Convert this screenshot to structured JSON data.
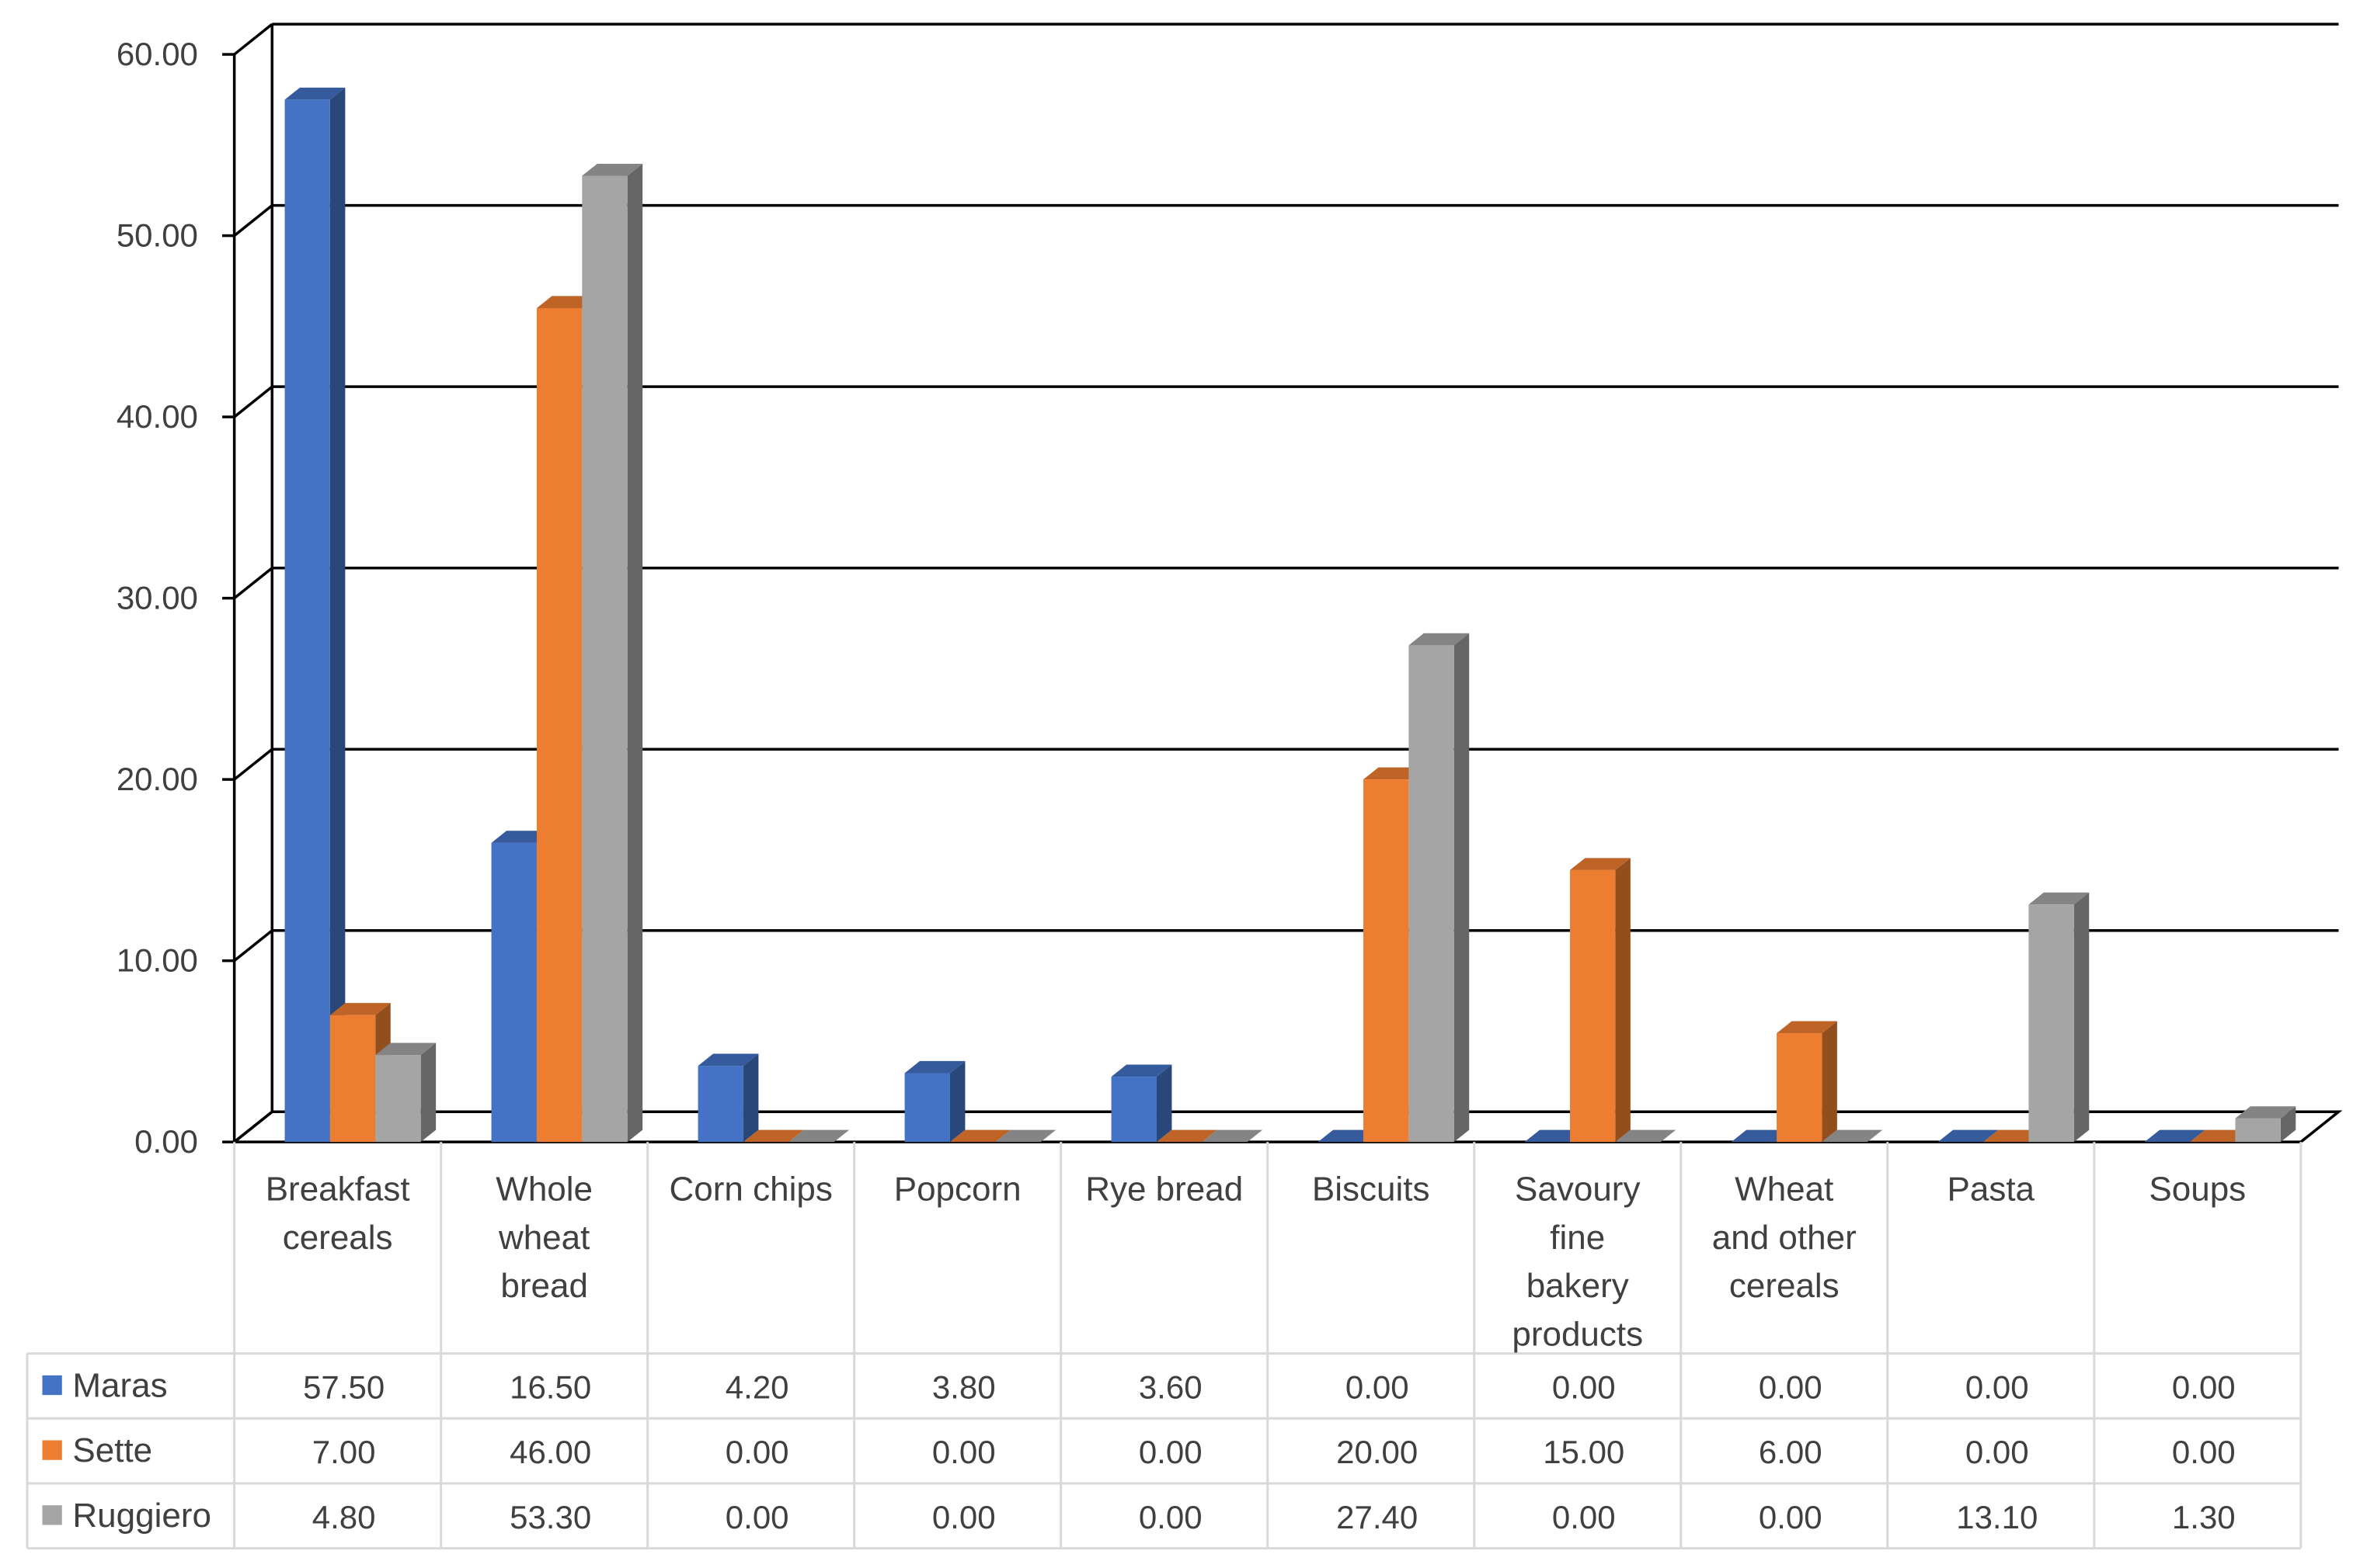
{
  "chart_data": {
    "type": "bar",
    "style": "3d-clustered-column-with-data-table",
    "title": "",
    "xlabel": "",
    "ylabel": "",
    "ylim": [
      0,
      60
    ],
    "yticks": [
      "0.00",
      "10.00",
      "20.00",
      "30.00",
      "40.00",
      "50.00",
      "60.00"
    ],
    "grid": true,
    "legend_placement": "left of data table",
    "categories": [
      [
        "Breakfast",
        "cereals"
      ],
      [
        "Whole",
        "wheat",
        "bread"
      ],
      [
        "Corn chips"
      ],
      [
        "Popcorn"
      ],
      [
        "Rye bread"
      ],
      [
        "Biscuits"
      ],
      [
        "Savoury",
        "fine",
        "bakery",
        "products"
      ],
      [
        "Wheat",
        "and other",
        "cereals"
      ],
      [
        "Pasta"
      ],
      [
        "Soups"
      ]
    ],
    "series": [
      {
        "name": "Maras",
        "color": "#4472C4",
        "values": [
          57.5,
          16.5,
          4.2,
          3.8,
          3.6,
          0,
          0,
          0,
          0,
          0
        ],
        "labels": [
          "57.50",
          "16.50",
          "4.20",
          "3.80",
          "3.60",
          "0.00",
          "0.00",
          "0.00",
          "0.00",
          "0.00"
        ]
      },
      {
        "name": "Sette",
        "color": "#ED7D31",
        "values": [
          7.0,
          46.0,
          0,
          0,
          0,
          20.0,
          15.0,
          6.0,
          0,
          0
        ],
        "labels": [
          "7.00",
          "46.00",
          "0.00",
          "0.00",
          "0.00",
          "20.00",
          "15.00",
          "6.00",
          "0.00",
          "0.00"
        ]
      },
      {
        "name": "Ruggiero",
        "color": "#A5A5A5",
        "values": [
          4.8,
          53.3,
          0,
          0,
          0,
          27.4,
          0,
          0,
          13.1,
          1.3
        ],
        "labels": [
          "4.80",
          "53.30",
          "0.00",
          "0.00",
          "0.00",
          "27.40",
          "0.00",
          "0.00",
          "13.10",
          "1.30"
        ]
      }
    ]
  }
}
